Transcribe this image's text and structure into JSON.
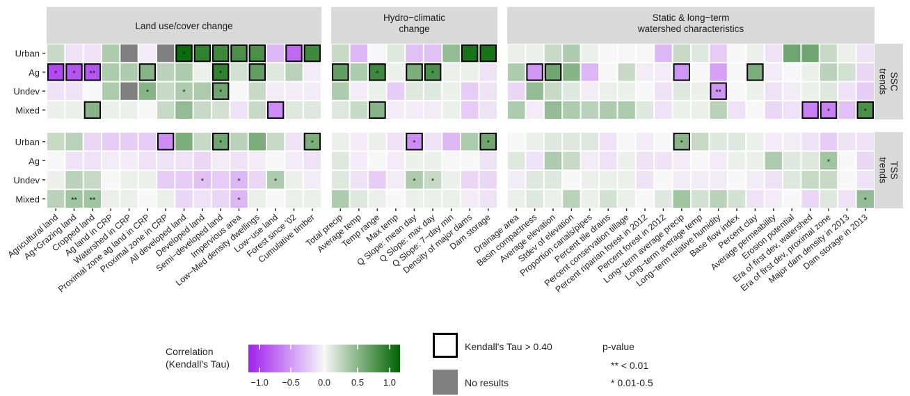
{
  "chart_data": {
    "type": "heatmap",
    "facets": {
      "columns": [
        "Land use/cover change",
        "Hydro−climatic\nchange",
        "Static & long−term\nwatershed characteristics"
      ],
      "rows": [
        "SSC\ntrends",
        "TSS\ntrends"
      ]
    },
    "x_labels": [
      [
        "Agricultural land",
        "Ag+Grazing land",
        "Cropped land",
        "Ag land in CRP",
        "Watershed in CRP",
        "Proximal zone ag land in CRP",
        "Proximal zone in CRP",
        "All developed land",
        "Developed land",
        "Semi−developed land",
        "Impervious area",
        "Low−Med density dwellings",
        "Low−use land",
        "Forest since '02",
        "Cumulative timber"
      ],
      [
        "Total precip",
        "Average temp",
        "Temp range",
        "Max temp",
        "Q Slope: mean day",
        "Q Slope: max day",
        "Q Slope: 7−day min",
        "Density of major dams",
        "Dam storage"
      ],
      [
        "Drainage area",
        "Basin compactness",
        "Average elevation",
        "Stdev of elevation",
        "Proportion canals/pipes",
        "Percent tile drains",
        "Percent conservation tillage",
        "Percent riparian forest in 2012",
        "Percent forest in 2012",
        "Long−term average precip",
        "Long−term average temp",
        "Long−term relative humidity",
        "Base flow index",
        "Percent clay",
        "Average permeability",
        "Erosion potential",
        "Era of first dev, watershed",
        "Era of first dev, proximal zone",
        "Major dam density in 2013",
        "Dam storage in 2013"
      ]
    ],
    "y_labels": [
      "Urban",
      "Ag",
      "Undev",
      "Mixed"
    ],
    "values": [
      [
        [
          [
            0.2,
            -0.1,
            -0.1,
            0.3,
            "NA",
            -0.05,
            "NA",
            0.95,
            0.8,
            0.75,
            0.7,
            0.7,
            -0.3,
            -0.65,
            0.75
          ],
          [
            -0.8,
            -0.75,
            -0.75,
            0.3,
            0.3,
            0.45,
            0.25,
            0.3,
            0.05,
            0.8,
            0.15,
            0.6,
            0.1,
            0.25,
            -0.05
          ],
          [
            -0.1,
            -0.1,
            0.0,
            0.3,
            "NA",
            0.45,
            0.2,
            0.3,
            0.3,
            0.55,
            0.0,
            0.2,
            -0.05,
            -0.05,
            -0.05
          ],
          [
            0.05,
            0.05,
            0.45,
            0.05,
            0.05,
            0.0,
            0.2,
            0.4,
            0.2,
            0.15,
            -0.1,
            0.2,
            -0.5,
            0.1,
            0.1
          ]
        ],
        [
          [
            0.2,
            -0.3,
            0.0,
            0.1,
            -0.25,
            -0.25,
            0.4,
            0.9,
            0.9
          ],
          [
            0.6,
            0.3,
            0.75,
            0.05,
            0.5,
            0.7,
            0.05,
            0.05,
            -0.1
          ],
          [
            0.3,
            -0.05,
            0.05,
            -0.2,
            0.1,
            0.1,
            0.05,
            -0.2,
            -0.1
          ],
          [
            0.1,
            0.2,
            0.45,
            -0.05,
            -0.05,
            -0.05,
            0.05,
            -0.2,
            -0.1
          ]
        ],
        [
          [
            0.05,
            0.05,
            0.2,
            0.3,
            0.05,
            0.0,
            0.0,
            0.0,
            -0.3,
            0.2,
            0.1,
            -0.2,
            0.0,
            0.05,
            -0.1,
            0.55,
            0.55,
            0.2,
            0.05,
            -0.1
          ],
          [
            0.3,
            -0.45,
            0.55,
            0.45,
            -0.3,
            0.0,
            0.2,
            -0.05,
            -0.05,
            -0.45,
            0.0,
            -0.4,
            0.0,
            0.5,
            -0.05,
            0.0,
            0.05,
            0.25,
            0.15,
            -0.15
          ],
          [
            -0.15,
            0.4,
            0.2,
            0.1,
            -0.05,
            0.05,
            0.05,
            0.0,
            -0.1,
            0.1,
            0.05,
            -0.45,
            0.0,
            0.05,
            -0.1,
            -0.05,
            0.05,
            0.1,
            -0.1,
            -0.2
          ],
          [
            0.3,
            -0.05,
            0.4,
            0.3,
            0.25,
            0.3,
            0.3,
            0.1,
            -0.1,
            0.05,
            0.05,
            0.25,
            -0.1,
            0.0,
            -0.15,
            -0.1,
            -0.55,
            -0.55,
            -0.25,
            0.7
          ]
        ]
      ],
      [
        [
          [
            0.2,
            0.25,
            -0.15,
            -0.2,
            -0.2,
            -0.2,
            -0.5,
            0.5,
            0.2,
            0.55,
            0.25,
            0.5,
            0.2,
            -0.1,
            0.5
          ],
          [
            0.0,
            -0.1,
            -0.1,
            -0.05,
            -0.05,
            -0.1,
            -0.1,
            -0.1,
            -0.15,
            -0.05,
            -0.1,
            -0.05,
            0.0,
            -0.05,
            -0.1
          ],
          [
            0.05,
            0.25,
            0.2,
            0.0,
            0.05,
            0.05,
            -0.2,
            -0.2,
            -0.25,
            -0.2,
            -0.3,
            -0.15,
            0.3,
            0.05,
            -0.05
          ],
          [
            0.25,
            0.35,
            0.35,
            0.05,
            0.05,
            0.0,
            0.05,
            -0.15,
            -0.1,
            -0.15,
            -0.3,
            0.05,
            0.0,
            0.05,
            0.05
          ]
        ],
        [
          [
            0.05,
            -0.05,
            0.05,
            -0.1,
            -0.5,
            -0.1,
            -0.3,
            0.3,
            0.55
          ],
          [
            0.1,
            -0.05,
            0.0,
            -0.05,
            0.05,
            0.05,
            0.0,
            0.0,
            -0.1
          ],
          [
            0.1,
            -0.1,
            -0.2,
            -0.05,
            0.3,
            0.2,
            0.05,
            -0.15,
            -0.15
          ],
          [
            0.3,
            0.1,
            0.05,
            0.0,
            0.05,
            0.05,
            0.05,
            -0.05,
            -0.1
          ]
        ],
        [
          [
            0.0,
            0.05,
            0.1,
            0.1,
            0.1,
            -0.1,
            0.0,
            -0.05,
            0.0,
            0.45,
            0.2,
            0.1,
            0.1,
            0.05,
            -0.05,
            -0.05,
            -0.1,
            -0.2,
            -0.1,
            -0.1
          ],
          [
            0.1,
            -0.1,
            0.3,
            0.2,
            -0.05,
            -0.1,
            0.05,
            -0.1,
            -0.1,
            -0.05,
            0.0,
            -0.05,
            0.05,
            0.05,
            0.3,
            0.1,
            0.1,
            0.35,
            0.0,
            -0.15
          ],
          [
            -0.05,
            0.1,
            0.1,
            0.0,
            0.05,
            0.05,
            0.05,
            -0.1,
            0.0,
            -0.05,
            -0.05,
            -0.05,
            0.0,
            -0.05,
            -0.1,
            0.1,
            0.2,
            0.2,
            0.0,
            -0.1
          ],
          [
            0.05,
            0.1,
            0.05,
            0.25,
            0.05,
            0.15,
            0.05,
            0.0,
            0.1,
            0.35,
            0.15,
            0.25,
            0.15,
            -0.1,
            -0.05,
            0.0,
            -0.15,
            0.1,
            -0.1,
            0.4
          ]
        ]
      ]
    ],
    "stars": [
      [
        {
          "0,7": "*",
          "1,0": "*",
          "1,1": "*",
          "1,2": "**",
          "1,9": "*",
          "2,5": "*",
          "2,7": "*",
          "2,9": "*"
        },
        {
          "1,2": "*",
          "1,5": "*"
        },
        {
          "2,11": "**",
          "3,17": "*",
          "3,19": "*"
        }
      ],
      [
        {
          "0,9": "*",
          "0,14": "*",
          "2,8": "*",
          "2,10": "*",
          "2,12": "*",
          "3,1": "**",
          "3,2": "**",
          "3,10": "*"
        },
        {
          "0,4": "*",
          "0,8": "*",
          "2,4": "*",
          "2,5": "*"
        },
        {
          "0,9": "*",
          "1,17": "*",
          "3,19": "*"
        }
      ]
    ],
    "outlined": [
      [
        [
          "0,6",
          "1,0",
          "1,1",
          "1,2",
          "1,5",
          "1,9",
          "1,11",
          "2,9",
          "3,2",
          "3,12",
          "0,13",
          "0,14",
          "0,7",
          "0,8",
          "0,9",
          "0,10",
          "0,11"
        ],
        [
          "1,0",
          "1,2",
          "1,4",
          "1,5",
          "3,2",
          "0,7",
          "0,8"
        ],
        [
          "1,1",
          "1,2",
          "1,9",
          "1,11",
          "1,13",
          "2,11",
          "3,16",
          "3,17",
          "3,19"
        ]
      ],
      [
        [
          "0,6",
          "0,9",
          "0,14",
          "3,1",
          "3,2"
        ],
        [
          "0,4",
          "0,8"
        ],
        [
          "0,9"
        ]
      ]
    ],
    "colorbar": {
      "title": "Correlation\n(Kendall's Tau)",
      "ticks": [
        "−1.0",
        "−0.5",
        "0.0",
        "0.5",
        "1.0"
      ],
      "colors": {
        "low": "#a020f0",
        "mid": "#f7f7f7",
        "high": "#006400"
      }
    },
    "legend": {
      "outline_label": "Kendall's Tau > 0.40",
      "na_label": "No results",
      "na_color": "#808080",
      "pvalue_title": "p-value",
      "pvalue_1": "** < 0.01",
      "pvalue_2": "* 0.01-0.5"
    }
  }
}
